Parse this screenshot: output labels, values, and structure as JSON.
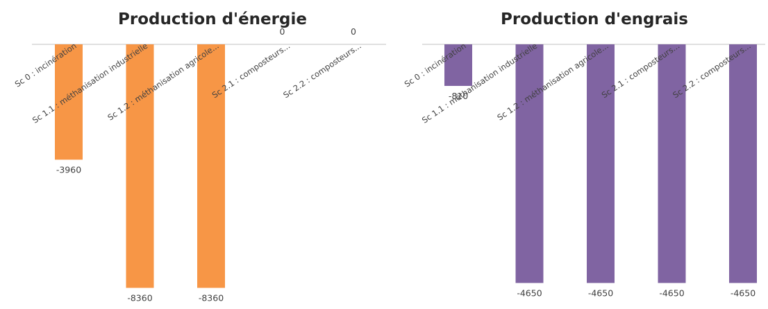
{
  "chart_data": [
    {
      "type": "bar",
      "title": "Production d'énergie",
      "categories": [
        "Sc 0 : incinération",
        "Sc 1.1 : méthanisation industrielle",
        "Sc 1.2 : méthanisation agricole...",
        "Sc 2.1 : composteurs...",
        "Sc 2.2 : composteurs..."
      ],
      "values": [
        -3960,
        -8360,
        -8360,
        0,
        0
      ],
      "data_labels": [
        "-3960",
        "-8360",
        "-8360",
        "0",
        "0"
      ],
      "ylim": [
        -8800,
        0
      ],
      "color": "#F79646",
      "grid": false,
      "legend": "none"
    },
    {
      "type": "bar",
      "title": "Production d'engrais",
      "categories": [
        "Sc 0 : incinération",
        "Sc 1.1 : méthanisation industrielle",
        "Sc 1.2 : méthanisation agricole...",
        "Sc 2.1 : composteurs...",
        "Sc 2.2 : composteurs..."
      ],
      "values": [
        -810,
        -4650,
        -4650,
        -4650,
        -4650
      ],
      "data_labels": [
        "-810",
        "-4650",
        "-4650",
        "-4650",
        "-4650"
      ],
      "ylim": [
        -4860,
        0
      ],
      "color": "#8064A2",
      "grid": false,
      "legend": "none"
    }
  ]
}
